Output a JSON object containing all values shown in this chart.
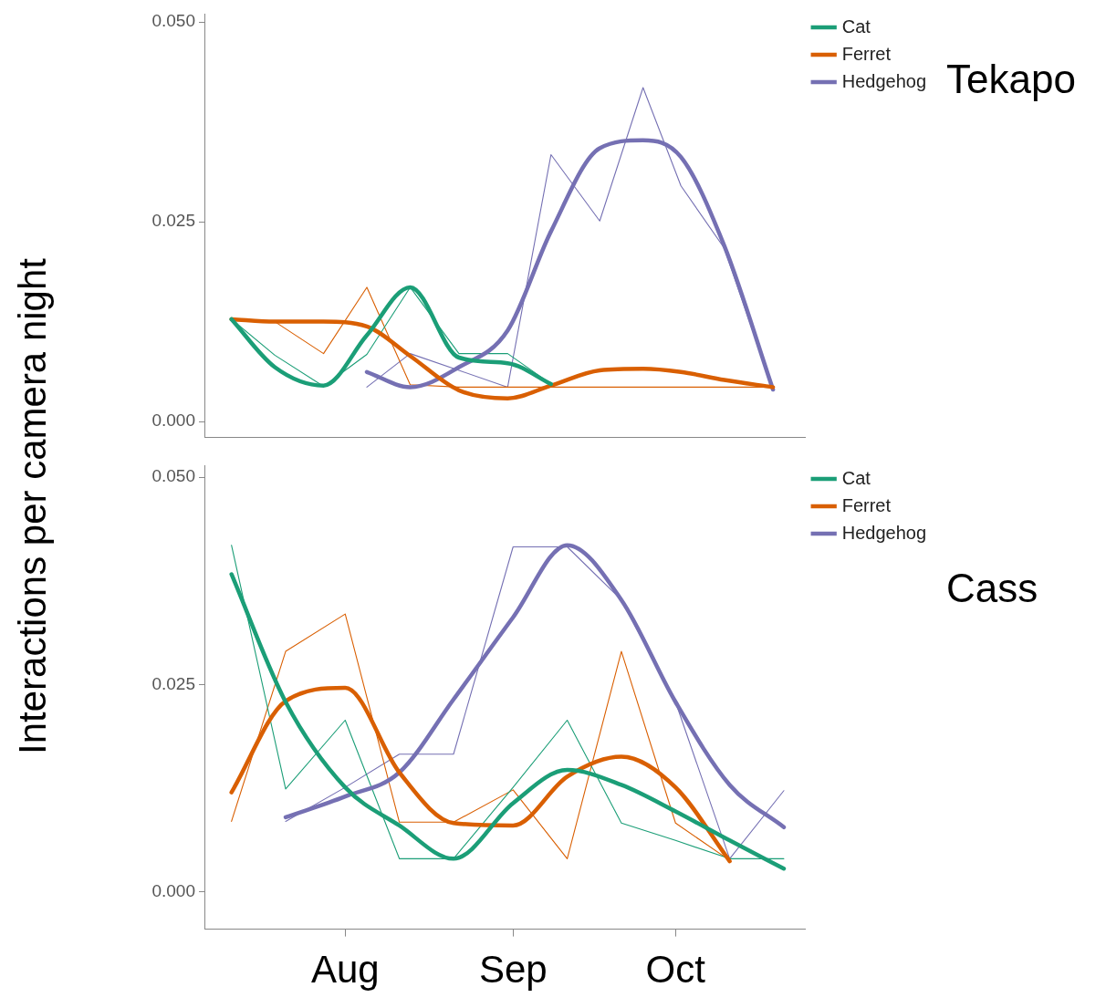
{
  "chart_data": [
    {
      "type": "line",
      "annotations": [
        "Tekapo"
      ],
      "ylabel": "Interactions per camera night",
      "legend": "top right",
      "tick_labels": "y",
      "grid": false,
      "marker": "none",
      "xlim": [
        "--07-06",
        "--10-25"
      ],
      "ylim": [
        -0.002,
        0.051
      ],
      "yticks": [
        {
          "value": 0,
          "label": "0.000"
        },
        {
          "value": 0.025,
          "label": "0.025"
        },
        {
          "value": 0.05,
          "label": "0.050"
        }
      ],
      "series": [
        {
          "color": "#1b9e77",
          "x": [
            "--07-11",
            "--07-19",
            "--07-28",
            "--08-05",
            "--08-13",
            "--08-22",
            "--08-31",
            "--09-08"
          ],
          "values": [
            0.0128,
            0.0083,
            0.0044,
            0.0084,
            0.0168,
            0.0085,
            0.0085,
            0.0047
          ]
        },
        {
          "color": "#d95f02",
          "x": [
            "--07-11",
            "--07-19",
            "--07-28",
            "--08-05",
            "--08-13",
            "--08-22",
            "--08-31",
            "--09-08",
            "--09-17",
            "--09-25",
            "--10-02",
            "--10-10",
            "--10-19"
          ],
          "values": [
            0.0128,
            0.0125,
            0.0085,
            0.0168,
            0.0046,
            0.0043,
            0.0043,
            0.0043,
            0.0043,
            0.0043,
            0.0043,
            0.0043,
            0.0043
          ]
        },
        {
          "color": "#7570b3",
          "x": [
            "--08-05",
            "--08-13",
            "--08-22",
            "--08-31",
            "--09-08",
            "--09-17",
            "--09-25",
            "--10-02",
            "--10-10",
            "--10-19"
          ],
          "values": [
            0.0043,
            0.0085,
            0.0064,
            0.0043,
            0.0334,
            0.0251,
            0.0418,
            0.0295,
            0.0217,
            0.004
          ]
        },
        {
          "name": "Cat",
          "color": "#1b9e77",
          "x": [
            "--07-11",
            "--07-19",
            "--07-28",
            "--08-05",
            "--08-13",
            "--08-22",
            "--08-31",
            "--09-08"
          ],
          "values": [
            0.0128,
            0.0068,
            0.0045,
            0.0108,
            0.0168,
            0.008,
            0.0073,
            0.0047
          ]
        },
        {
          "name": "Ferret",
          "color": "#d95f02",
          "x": [
            "--07-11",
            "--07-19",
            "--07-28",
            "--08-05",
            "--08-13",
            "--08-22",
            "--08-31",
            "--09-08",
            "--09-17",
            "--09-25",
            "--10-02",
            "--10-10",
            "--10-19"
          ],
          "values": [
            0.0128,
            0.0125,
            0.0125,
            0.0119,
            0.0082,
            0.0039,
            0.0029,
            0.0045,
            0.0064,
            0.0066,
            0.0062,
            0.0052,
            0.0043
          ]
        },
        {
          "name": "Hedgehog",
          "color": "#7570b3",
          "x": [
            "--08-05",
            "--08-13",
            "--08-22",
            "--08-31",
            "--09-08",
            "--09-17",
            "--09-25",
            "--10-02",
            "--10-10",
            "--10-19"
          ],
          "values": [
            0.0062,
            0.0043,
            0.0068,
            0.0114,
            0.0238,
            0.0342,
            0.0352,
            0.0331,
            0.022,
            0.004
          ]
        }
      ]
    },
    {
      "type": "line",
      "annotations": [
        "Cass"
      ],
      "legend": "top right",
      "grid": false,
      "marker": "none",
      "xlim": [
        "--07-06",
        "--10-25"
      ],
      "ylim": [
        -0.0045,
        0.0514
      ],
      "xticks": [
        {
          "value": "--08-01",
          "label": "Aug"
        },
        {
          "value": "--09-01",
          "label": "Sep"
        },
        {
          "value": "--10-01",
          "label": "Oct"
        }
      ],
      "yticks": [
        {
          "value": 0,
          "label": "0.000"
        },
        {
          "value": 0.025,
          "label": "0.025"
        },
        {
          "value": 0.05,
          "label": "0.050"
        }
      ],
      "series": [
        {
          "color": "#1b9e77",
          "x": [
            "--07-11",
            "--07-21",
            "--08-01",
            "--08-11",
            "--08-21",
            "--09-01",
            "--09-11",
            "--09-21",
            "--10-01",
            "--10-11",
            "--10-21"
          ],
          "values": [
            0.0418,
            0.0124,
            0.0207,
            0.004,
            0.004,
            0.0126,
            0.0207,
            0.0083,
            0.0062,
            0.004,
            0.004
          ]
        },
        {
          "color": "#d95f02",
          "x": [
            "--07-11",
            "--07-21",
            "--08-01",
            "--08-11",
            "--08-21",
            "--09-01",
            "--09-11",
            "--09-21",
            "--10-01",
            "--10-11"
          ],
          "values": [
            0.0085,
            0.029,
            0.0335,
            0.0084,
            0.0084,
            0.0123,
            0.004,
            0.029,
            0.0083,
            0.0038
          ]
        },
        {
          "color": "#7570b3",
          "x": [
            "--07-21",
            "--08-01",
            "--08-11",
            "--08-21",
            "--09-01",
            "--09-11",
            "--09-21",
            "--10-01",
            "--10-11",
            "--10-21"
          ],
          "values": [
            0.0085,
            0.0126,
            0.0166,
            0.0166,
            0.0416,
            0.0416,
            0.0352,
            0.0229,
            0.004,
            0.0122
          ]
        },
        {
          "name": "Cat",
          "color": "#1b9e77",
          "x": [
            "--07-11",
            "--07-21",
            "--08-01",
            "--08-11",
            "--08-21",
            "--09-01",
            "--09-11",
            "--09-21",
            "--10-01",
            "--10-11",
            "--10-21"
          ],
          "values": [
            0.0383,
            0.0229,
            0.0126,
            0.008,
            0.004,
            0.0107,
            0.0147,
            0.0129,
            0.0097,
            0.0062,
            0.0028
          ]
        },
        {
          "name": "Ferret",
          "color": "#d95f02",
          "x": [
            "--07-11",
            "--07-21",
            "--08-01",
            "--08-11",
            "--08-21",
            "--09-01",
            "--09-11",
            "--09-21",
            "--10-01",
            "--10-11"
          ],
          "values": [
            0.012,
            0.023,
            0.0246,
            0.0144,
            0.0083,
            0.008,
            0.0139,
            0.0163,
            0.0126,
            0.0037
          ]
        },
        {
          "name": "Hedgehog",
          "color": "#7570b3",
          "x": [
            "--07-21",
            "--08-01",
            "--08-11",
            "--08-21",
            "--09-01",
            "--09-11",
            "--09-21",
            "--10-01",
            "--10-11",
            "--10-21"
          ],
          "values": [
            0.009,
            0.0115,
            0.0144,
            0.0232,
            0.0331,
            0.0418,
            0.0352,
            0.0229,
            0.0129,
            0.0078
          ]
        }
      ]
    }
  ]
}
